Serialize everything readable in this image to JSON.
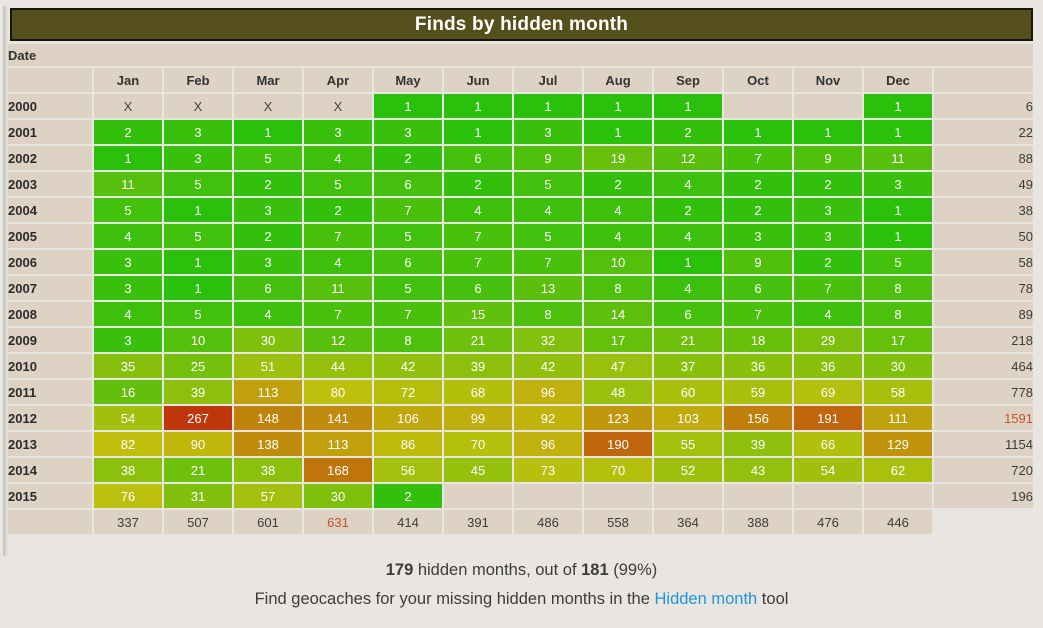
{
  "title": "Finds by hidden month",
  "date_label": "Date",
  "colors": {
    "page_bg": "#e9e5e0",
    "title_bar_bg": "#554f1b",
    "title_bar_border": "#15150a",
    "title_text": "#ffffff",
    "cell_bg_beige": "#ddd2c4",
    "text_dark": "#3c3c3c",
    "total_highlight_red": "#c7502c",
    "link_blue": "#2095db",
    "heat_green_low": "#2ac00c",
    "heat_red_high": "#c0360c"
  },
  "heatmap": {
    "scale": "sqrt",
    "hue_start": 110,
    "hue_end": 14,
    "saturation": 88,
    "lightness": 40,
    "max_value": 267
  },
  "chart_data": {
    "type": "heatmap",
    "title": "Finds by hidden month",
    "columns": [
      "Jan",
      "Feb",
      "Mar",
      "Apr",
      "May",
      "Jun",
      "Jul",
      "Aug",
      "Sep",
      "Oct",
      "Nov",
      "Dec"
    ],
    "rows": [
      {
        "year": "2000",
        "cells": [
          "X",
          "X",
          "X",
          "X",
          1,
          1,
          1,
          1,
          1,
          "",
          "",
          1
        ],
        "total": 6,
        "total_highlighted": false
      },
      {
        "year": "2001",
        "cells": [
          2,
          3,
          1,
          3,
          3,
          1,
          3,
          1,
          2,
          1,
          1,
          1
        ],
        "total": 22,
        "total_highlighted": false
      },
      {
        "year": "2002",
        "cells": [
          1,
          3,
          5,
          4,
          2,
          6,
          9,
          19,
          12,
          7,
          9,
          11
        ],
        "total": 88,
        "total_highlighted": false
      },
      {
        "year": "2003",
        "cells": [
          11,
          5,
          2,
          5,
          6,
          2,
          5,
          2,
          4,
          2,
          2,
          3
        ],
        "total": 49,
        "total_highlighted": false
      },
      {
        "year": "2004",
        "cells": [
          5,
          1,
          3,
          2,
          7,
          4,
          4,
          4,
          2,
          2,
          3,
          1
        ],
        "total": 38,
        "total_highlighted": false
      },
      {
        "year": "2005",
        "cells": [
          4,
          5,
          2,
          7,
          5,
          7,
          5,
          4,
          4,
          3,
          3,
          1
        ],
        "total": 50,
        "total_highlighted": false
      },
      {
        "year": "2006",
        "cells": [
          3,
          1,
          3,
          4,
          6,
          7,
          7,
          10,
          1,
          9,
          2,
          5
        ],
        "total": 58,
        "total_highlighted": false
      },
      {
        "year": "2007",
        "cells": [
          3,
          1,
          6,
          11,
          5,
          6,
          13,
          8,
          4,
          6,
          7,
          8
        ],
        "total": 78,
        "total_highlighted": false
      },
      {
        "year": "2008",
        "cells": [
          4,
          5,
          4,
          7,
          7,
          15,
          8,
          14,
          6,
          7,
          4,
          8
        ],
        "total": 89,
        "total_highlighted": false
      },
      {
        "year": "2009",
        "cells": [
          3,
          10,
          30,
          12,
          8,
          21,
          32,
          17,
          21,
          18,
          29,
          17
        ],
        "total": 218,
        "total_highlighted": false
      },
      {
        "year": "2010",
        "cells": [
          35,
          25,
          51,
          44,
          42,
          39,
          42,
          47,
          37,
          36,
          36,
          30
        ],
        "total": 464,
        "total_highlighted": false
      },
      {
        "year": "2011",
        "cells": [
          16,
          39,
          113,
          80,
          72,
          68,
          96,
          48,
          60,
          59,
          69,
          58
        ],
        "total": 778,
        "total_highlighted": false
      },
      {
        "year": "2012",
        "cells": [
          54,
          267,
          148,
          141,
          106,
          99,
          92,
          123,
          103,
          156,
          191,
          111
        ],
        "total": 1591,
        "total_highlighted": true
      },
      {
        "year": "2013",
        "cells": [
          82,
          90,
          138,
          113,
          86,
          70,
          96,
          190,
          55,
          39,
          66,
          129
        ],
        "total": 1154,
        "total_highlighted": false
      },
      {
        "year": "2014",
        "cells": [
          38,
          21,
          38,
          168,
          56,
          45,
          73,
          70,
          52,
          43,
          54,
          62
        ],
        "total": 720,
        "total_highlighted": false
      },
      {
        "year": "2015",
        "cells": [
          76,
          31,
          57,
          30,
          2,
          "",
          "",
          "",
          "",
          "",
          "",
          ""
        ],
        "total": 196,
        "total_highlighted": false
      }
    ],
    "column_totals": [
      337,
      507,
      601,
      631,
      414,
      391,
      486,
      558,
      364,
      388,
      476,
      446
    ],
    "column_totals_highlighted_indexes": [
      3
    ]
  },
  "footer": {
    "line1_bold1": "179",
    "line1_text1": " hidden months, out of ",
    "line1_bold2": "181",
    "line1_text2": " (99%)",
    "line2_text1": "Find geocaches for your missing hidden months in the ",
    "line2_link": "Hidden month",
    "line2_text2": " tool"
  }
}
